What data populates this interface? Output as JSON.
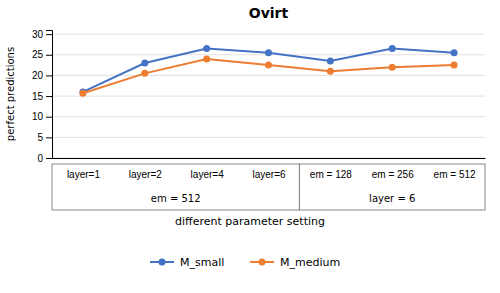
{
  "chart_data": {
    "type": "line",
    "title": "Ovirt",
    "xlabel": "different parameter setting",
    "ylabel": "perfect predictions",
    "categories": [
      "layer=1",
      "layer=2",
      "layer=4",
      "layer=6",
      "em = 128",
      "em = 256",
      "em = 512"
    ],
    "series": [
      {
        "name": "M_small",
        "color": "#4472C4",
        "values": [
          16,
          23,
          26.5,
          25.5,
          23.5,
          26.5,
          25.5
        ]
      },
      {
        "name": "M_medium",
        "color": "#ED7D31",
        "values": [
          15.7,
          20.5,
          24,
          22.5,
          21,
          22,
          22.5
        ]
      }
    ],
    "annotations": [
      "em = 512",
      "layer = 6"
    ],
    "ylim": [
      0,
      31
    ],
    "yticks": [
      0,
      5,
      10,
      15,
      20,
      25,
      30
    ],
    "grid": true,
    "marker": "circle",
    "legend": "bottom"
  }
}
